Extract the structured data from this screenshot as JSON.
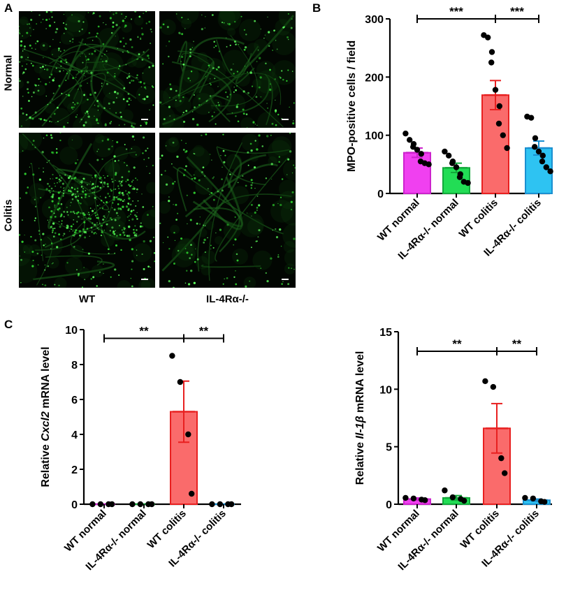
{
  "panels": {
    "a": {
      "letter": "A",
      "rows": [
        "Normal",
        "Colitis"
      ],
      "columns": [
        "WT",
        "IL-4Rα-/-"
      ]
    },
    "b": {
      "letter": "B"
    },
    "c": {
      "letter": "C"
    }
  },
  "chart_data": [
    {
      "id": "b",
      "type": "bar",
      "ylabel": "MPO-positive cells / field",
      "ylabel_parts": [
        {
          "text": "MPO-positive cells / field",
          "italic": false
        }
      ],
      "categories": [
        "WT normal",
        "IL-4Rα-/- normal",
        "WT colitis",
        "IL-4Rα-/- colitis"
      ],
      "values": [
        70,
        44,
        169,
        78
      ],
      "errors": [
        8,
        8,
        25,
        12
      ],
      "points": [
        [
          103,
          92,
          85,
          80,
          75,
          68,
          55,
          52,
          50
        ],
        [
          72,
          65,
          55,
          52,
          45,
          33,
          28,
          20,
          18
        ],
        [
          272,
          268,
          243,
          225,
          178,
          150,
          120,
          100,
          78
        ],
        [
          132,
          130,
          95,
          80,
          72,
          65,
          55,
          45,
          38
        ]
      ],
      "colors": [
        "#f040f0",
        "#22dd55",
        "#fa6b6b",
        "#2ec3f2"
      ],
      "edge_colors": [
        "#cc22cc",
        "#12a83a",
        "#e82020",
        "#1a8fd0"
      ],
      "ylim": [
        0,
        300
      ],
      "yticks": [
        0,
        100,
        200,
        300
      ],
      "significance": [
        {
          "from": 0,
          "to": 2,
          "label": "***",
          "y": 300
        },
        {
          "from": 2,
          "to": 3,
          "label": "***",
          "y": 300
        }
      ]
    },
    {
      "id": "c1",
      "type": "bar",
      "ylabel": "Relative Cxcl2 mRNA level",
      "ylabel_parts": [
        {
          "text": "Relative ",
          "italic": false
        },
        {
          "text": "Cxcl2",
          "italic": true
        },
        {
          "text": " mRNA level",
          "italic": false
        }
      ],
      "categories": [
        "WT normal",
        "IL-4Rα-/- normal",
        "WT colitis",
        "IL-4Rα-/- colitis"
      ],
      "values": [
        0,
        0,
        5.3,
        0
      ],
      "errors": [
        0,
        0,
        1.75,
        0
      ],
      "points": [
        [
          0,
          0,
          0,
          0
        ],
        [
          0,
          0,
          0,
          0
        ],
        [
          8.5,
          7.0,
          4.0,
          0.6
        ],
        [
          0,
          0,
          0,
          0
        ]
      ],
      "colors": [
        "#f040f0",
        "#22dd55",
        "#fa6b6b",
        "#2ec3f2"
      ],
      "edge_colors": [
        "#cc22cc",
        "#12a83a",
        "#e82020",
        "#1a8fd0"
      ],
      "ylim": [
        0,
        10
      ],
      "yticks": [
        0,
        2,
        4,
        6,
        8,
        10
      ],
      "significance": [
        {
          "from": 0,
          "to": 2,
          "label": "**",
          "y": 9.5
        },
        {
          "from": 2,
          "to": 3,
          "label": "**",
          "y": 9.5
        }
      ]
    },
    {
      "id": "c2",
      "type": "bar",
      "ylabel": "Relative Il-1β mRNA level",
      "ylabel_parts": [
        {
          "text": "Relative ",
          "italic": false
        },
        {
          "text": "Il-1β",
          "italic": true
        },
        {
          "text": " mRNA level",
          "italic": false
        }
      ],
      "categories": [
        "WT normal",
        "IL-4Rα-/- normal",
        "WT colitis",
        "IL-4Rα-/- colitis"
      ],
      "values": [
        0.45,
        0.55,
        6.6,
        0.35
      ],
      "errors": [
        0.1,
        0.2,
        2.15,
        0.1
      ],
      "points": [
        [
          0.55,
          0.5,
          0.4,
          0.35
        ],
        [
          1.2,
          0.6,
          0.45,
          0.3
        ],
        [
          10.7,
          10.2,
          4.0,
          2.7
        ],
        [
          0.55,
          0.5,
          0.25,
          0.2
        ]
      ],
      "colors": [
        "#f040f0",
        "#22dd55",
        "#fa6b6b",
        "#2ec3f2"
      ],
      "edge_colors": [
        "#cc22cc",
        "#12a83a",
        "#e82020",
        "#1a8fd0"
      ],
      "ylim": [
        0,
        15
      ],
      "yticks": [
        0,
        5,
        10,
        15
      ],
      "significance": [
        {
          "from": 0,
          "to": 2,
          "label": "**",
          "y": 13.3
        },
        {
          "from": 2,
          "to": 3,
          "label": "**",
          "y": 13.3
        }
      ]
    }
  ]
}
